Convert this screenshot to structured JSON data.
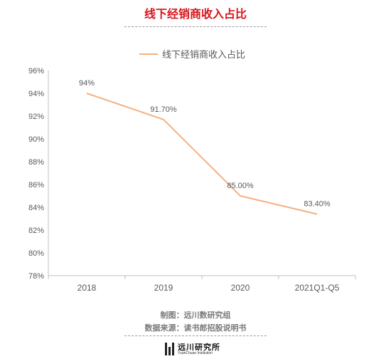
{
  "page": {
    "title": "线下经销商收入占比",
    "credit_maker": "制图：远川数研究组",
    "credit_source": "数据来源：读书郎招股说明书",
    "logo_cn": "远川研究所",
    "logo_en": "YuanChuan Institution"
  },
  "colors": {
    "title": "#d9141c",
    "series": "#f4b183",
    "axis": "#bfbfbf",
    "tick_text": "#595959"
  },
  "chart_data": {
    "type": "line",
    "title": "线下经销商收入占比",
    "categories": [
      "2018",
      "2019",
      "2020",
      "2021Q1-Q5"
    ],
    "series": [
      {
        "name": "线下经销商收入占比",
        "values": [
          94.0,
          91.7,
          85.0,
          83.4
        ],
        "labels": [
          "94%",
          "91.70%",
          "85.00%",
          "83.40%"
        ]
      }
    ],
    "ylim": [
      78,
      96
    ],
    "yticks": [
      "78%",
      "80%",
      "82%",
      "84%",
      "86%",
      "88%",
      "90%",
      "92%",
      "94%",
      "96%"
    ],
    "xlabel": "",
    "ylabel": "",
    "grid": false,
    "legend": "top-center"
  }
}
